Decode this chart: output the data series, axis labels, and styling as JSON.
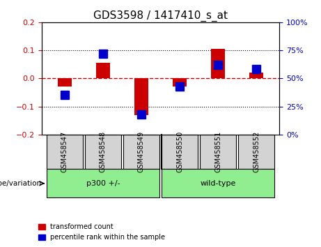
{
  "title": "GDS3598 / 1417410_s_at",
  "samples": [
    "GSM458547",
    "GSM458548",
    "GSM458549",
    "GSM458550",
    "GSM458551",
    "GSM458552"
  ],
  "red_values": [
    -0.03,
    0.055,
    -0.13,
    -0.03,
    0.105,
    0.02
  ],
  "blue_values_pct": [
    35,
    72,
    18,
    43,
    62,
    58
  ],
  "group_label": "genotype/variation",
  "groups_def": [
    {
      "label": "p300 +/-",
      "start": 0,
      "end": 2
    },
    {
      "label": "wild-type",
      "start": 3,
      "end": 5
    }
  ],
  "ylim_left": [
    -0.2,
    0.2
  ],
  "ylim_right": [
    0,
    100
  ],
  "yticks_left": [
    -0.2,
    -0.1,
    0,
    0.1,
    0.2
  ],
  "yticks_right": [
    0,
    25,
    50,
    75,
    100
  ],
  "red_color": "#CC0000",
  "blue_color": "#0000CC",
  "zero_line_color": "#CC0000",
  "bar_width": 0.35,
  "blue_marker_size": 8,
  "legend_red_label": "transformed count",
  "legend_blue_label": "percentile rank within the sample",
  "gray_box_color": "#D3D3D3",
  "green_box_color": "#90EE90"
}
